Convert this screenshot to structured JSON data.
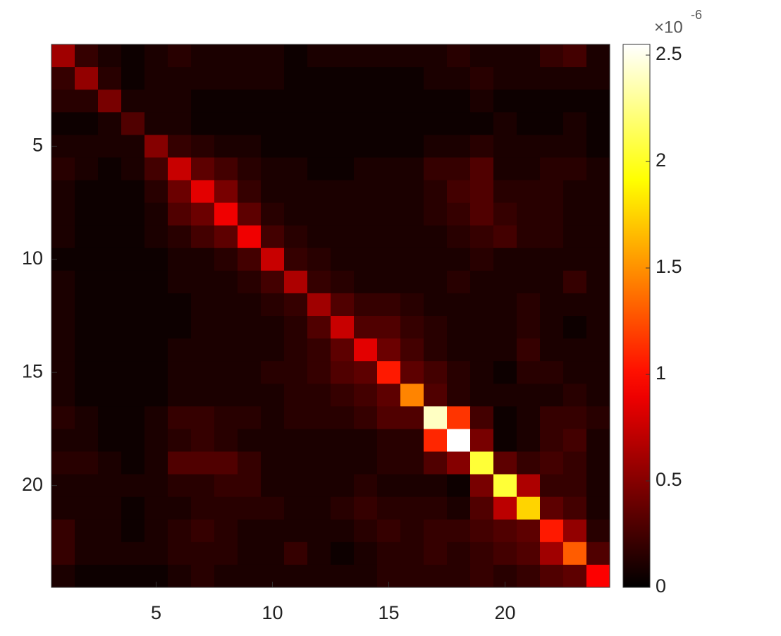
{
  "chart_data": {
    "type": "heatmap",
    "colormap": "hot",
    "xlim": [
      0.5,
      24.5
    ],
    "ylim": [
      0.5,
      24.5
    ],
    "y_reversed": true,
    "xticks": [
      5,
      10,
      15,
      20
    ],
    "yticks": [
      5,
      10,
      15,
      20
    ],
    "clim": [
      0,
      2.55
    ],
    "colorbar_ticks": [
      0,
      0.5,
      1,
      1.5,
      2,
      2.5
    ],
    "colorbar_multiplier": "×10",
    "colorbar_exponent": "-6",
    "values": [
      [
        0.6,
        0.2,
        0.1,
        0.05,
        0.1,
        0.15,
        0.1,
        0.1,
        0.1,
        0.1,
        0.05,
        0.1,
        0.1,
        0.1,
        0.1,
        0.1,
        0.1,
        0.15,
        0.1,
        0.1,
        0.1,
        0.2,
        0.25,
        0.1
      ],
      [
        0.2,
        0.55,
        0.15,
        0.05,
        0.1,
        0.1,
        0.1,
        0.1,
        0.1,
        0.1,
        0.05,
        0.05,
        0.05,
        0.05,
        0.05,
        0.05,
        0.1,
        0.1,
        0.15,
        0.1,
        0.1,
        0.1,
        0.1,
        0.1
      ],
      [
        0.15,
        0.15,
        0.45,
        0.1,
        0.1,
        0.1,
        0.05,
        0.05,
        0.05,
        0.05,
        0.05,
        0.05,
        0.05,
        0.05,
        0.05,
        0.05,
        0.05,
        0.05,
        0.1,
        0.05,
        0.05,
        0.05,
        0.05,
        0.05
      ],
      [
        0.05,
        0.05,
        0.1,
        0.3,
        0.1,
        0.1,
        0.05,
        0.05,
        0.05,
        0.05,
        0.05,
        0.05,
        0.05,
        0.05,
        0.05,
        0.05,
        0.05,
        0.05,
        0.05,
        0.1,
        0.05,
        0.05,
        0.1,
        0.05
      ],
      [
        0.1,
        0.1,
        0.1,
        0.1,
        0.5,
        0.2,
        0.15,
        0.1,
        0.1,
        0.05,
        0.05,
        0.05,
        0.05,
        0.05,
        0.05,
        0.05,
        0.1,
        0.1,
        0.15,
        0.1,
        0.1,
        0.1,
        0.1,
        0.05
      ],
      [
        0.15,
        0.1,
        0.05,
        0.1,
        0.25,
        0.75,
        0.35,
        0.25,
        0.15,
        0.1,
        0.1,
        0.05,
        0.05,
        0.1,
        0.1,
        0.1,
        0.2,
        0.2,
        0.3,
        0.1,
        0.1,
        0.15,
        0.15,
        0.1
      ],
      [
        0.1,
        0.05,
        0.05,
        0.05,
        0.15,
        0.4,
        0.85,
        0.45,
        0.2,
        0.1,
        0.1,
        0.1,
        0.1,
        0.1,
        0.1,
        0.1,
        0.15,
        0.25,
        0.3,
        0.15,
        0.15,
        0.15,
        0.1,
        0.1
      ],
      [
        0.1,
        0.05,
        0.05,
        0.05,
        0.1,
        0.3,
        0.4,
        0.9,
        0.35,
        0.15,
        0.1,
        0.1,
        0.1,
        0.1,
        0.1,
        0.1,
        0.15,
        0.2,
        0.3,
        0.2,
        0.15,
        0.15,
        0.1,
        0.1
      ],
      [
        0.1,
        0.05,
        0.05,
        0.05,
        0.1,
        0.15,
        0.25,
        0.35,
        0.9,
        0.25,
        0.15,
        0.1,
        0.1,
        0.1,
        0.1,
        0.1,
        0.1,
        0.15,
        0.2,
        0.25,
        0.15,
        0.15,
        0.1,
        0.1
      ],
      [
        0.05,
        0.05,
        0.05,
        0.05,
        0.05,
        0.1,
        0.1,
        0.15,
        0.25,
        0.75,
        0.2,
        0.15,
        0.1,
        0.1,
        0.1,
        0.1,
        0.1,
        0.1,
        0.15,
        0.1,
        0.1,
        0.1,
        0.1,
        0.1
      ],
      [
        0.1,
        0.05,
        0.05,
        0.05,
        0.05,
        0.1,
        0.1,
        0.1,
        0.15,
        0.25,
        0.65,
        0.2,
        0.15,
        0.1,
        0.1,
        0.1,
        0.1,
        0.15,
        0.1,
        0.1,
        0.1,
        0.1,
        0.2,
        0.1
      ],
      [
        0.1,
        0.05,
        0.05,
        0.05,
        0.05,
        0.05,
        0.1,
        0.1,
        0.1,
        0.15,
        0.2,
        0.6,
        0.3,
        0.2,
        0.2,
        0.15,
        0.1,
        0.1,
        0.1,
        0.1,
        0.15,
        0.1,
        0.1,
        0.1
      ],
      [
        0.1,
        0.05,
        0.05,
        0.05,
        0.05,
        0.05,
        0.1,
        0.1,
        0.1,
        0.1,
        0.15,
        0.3,
        0.75,
        0.3,
        0.3,
        0.2,
        0.15,
        0.1,
        0.1,
        0.1,
        0.15,
        0.1,
        0.05,
        0.1
      ],
      [
        0.1,
        0.05,
        0.05,
        0.05,
        0.05,
        0.1,
        0.1,
        0.1,
        0.1,
        0.1,
        0.15,
        0.2,
        0.35,
        0.85,
        0.4,
        0.25,
        0.15,
        0.1,
        0.1,
        0.1,
        0.2,
        0.1,
        0.1,
        0.1
      ],
      [
        0.1,
        0.05,
        0.05,
        0.05,
        0.05,
        0.1,
        0.1,
        0.1,
        0.1,
        0.15,
        0.15,
        0.2,
        0.3,
        0.35,
        1.05,
        0.35,
        0.25,
        0.15,
        0.1,
        0.05,
        0.15,
        0.15,
        0.1,
        0.1
      ],
      [
        0.1,
        0.05,
        0.05,
        0.05,
        0.05,
        0.1,
        0.1,
        0.1,
        0.1,
        0.1,
        0.15,
        0.15,
        0.2,
        0.25,
        0.35,
        1.45,
        0.3,
        0.15,
        0.1,
        0.1,
        0.1,
        0.1,
        0.15,
        0.1
      ],
      [
        0.15,
        0.1,
        0.05,
        0.05,
        0.1,
        0.2,
        0.2,
        0.15,
        0.15,
        0.1,
        0.15,
        0.15,
        0.15,
        0.2,
        0.3,
        0.3,
        2.4,
        1.15,
        0.25,
        0.05,
        0.1,
        0.2,
        0.2,
        0.15
      ],
      [
        0.1,
        0.1,
        0.05,
        0.05,
        0.1,
        0.15,
        0.2,
        0.15,
        0.1,
        0.1,
        0.1,
        0.1,
        0.1,
        0.1,
        0.15,
        0.15,
        1.1,
        2.55,
        0.45,
        0.05,
        0.1,
        0.2,
        0.25,
        0.1
      ],
      [
        0.15,
        0.15,
        0.1,
        0.05,
        0.1,
        0.3,
        0.3,
        0.3,
        0.2,
        0.1,
        0.1,
        0.1,
        0.1,
        0.1,
        0.15,
        0.15,
        0.3,
        0.5,
        2.05,
        0.35,
        0.2,
        0.25,
        0.2,
        0.1
      ],
      [
        0.1,
        0.1,
        0.1,
        0.1,
        0.1,
        0.15,
        0.15,
        0.2,
        0.2,
        0.1,
        0.1,
        0.1,
        0.1,
        0.15,
        0.1,
        0.1,
        0.1,
        0.05,
        0.45,
        2.05,
        0.65,
        0.2,
        0.2,
        0.1
      ],
      [
        0.1,
        0.1,
        0.1,
        0.05,
        0.1,
        0.1,
        0.15,
        0.15,
        0.15,
        0.15,
        0.1,
        0.1,
        0.15,
        0.2,
        0.15,
        0.15,
        0.15,
        0.1,
        0.3,
        0.7,
        1.75,
        0.35,
        0.25,
        0.1
      ],
      [
        0.2,
        0.1,
        0.1,
        0.05,
        0.1,
        0.15,
        0.2,
        0.15,
        0.1,
        0.1,
        0.1,
        0.1,
        0.1,
        0.15,
        0.2,
        0.15,
        0.2,
        0.2,
        0.25,
        0.3,
        0.35,
        1.05,
        0.55,
        0.15
      ],
      [
        0.2,
        0.1,
        0.1,
        0.1,
        0.1,
        0.15,
        0.15,
        0.15,
        0.1,
        0.1,
        0.2,
        0.1,
        0.05,
        0.1,
        0.15,
        0.15,
        0.2,
        0.15,
        0.2,
        0.25,
        0.3,
        0.6,
        1.3,
        0.3
      ],
      [
        0.1,
        0.05,
        0.05,
        0.05,
        0.05,
        0.1,
        0.15,
        0.1,
        0.1,
        0.1,
        0.1,
        0.1,
        0.1,
        0.1,
        0.15,
        0.15,
        0.15,
        0.15,
        0.2,
        0.15,
        0.2,
        0.3,
        0.35,
        0.95
      ]
    ]
  }
}
